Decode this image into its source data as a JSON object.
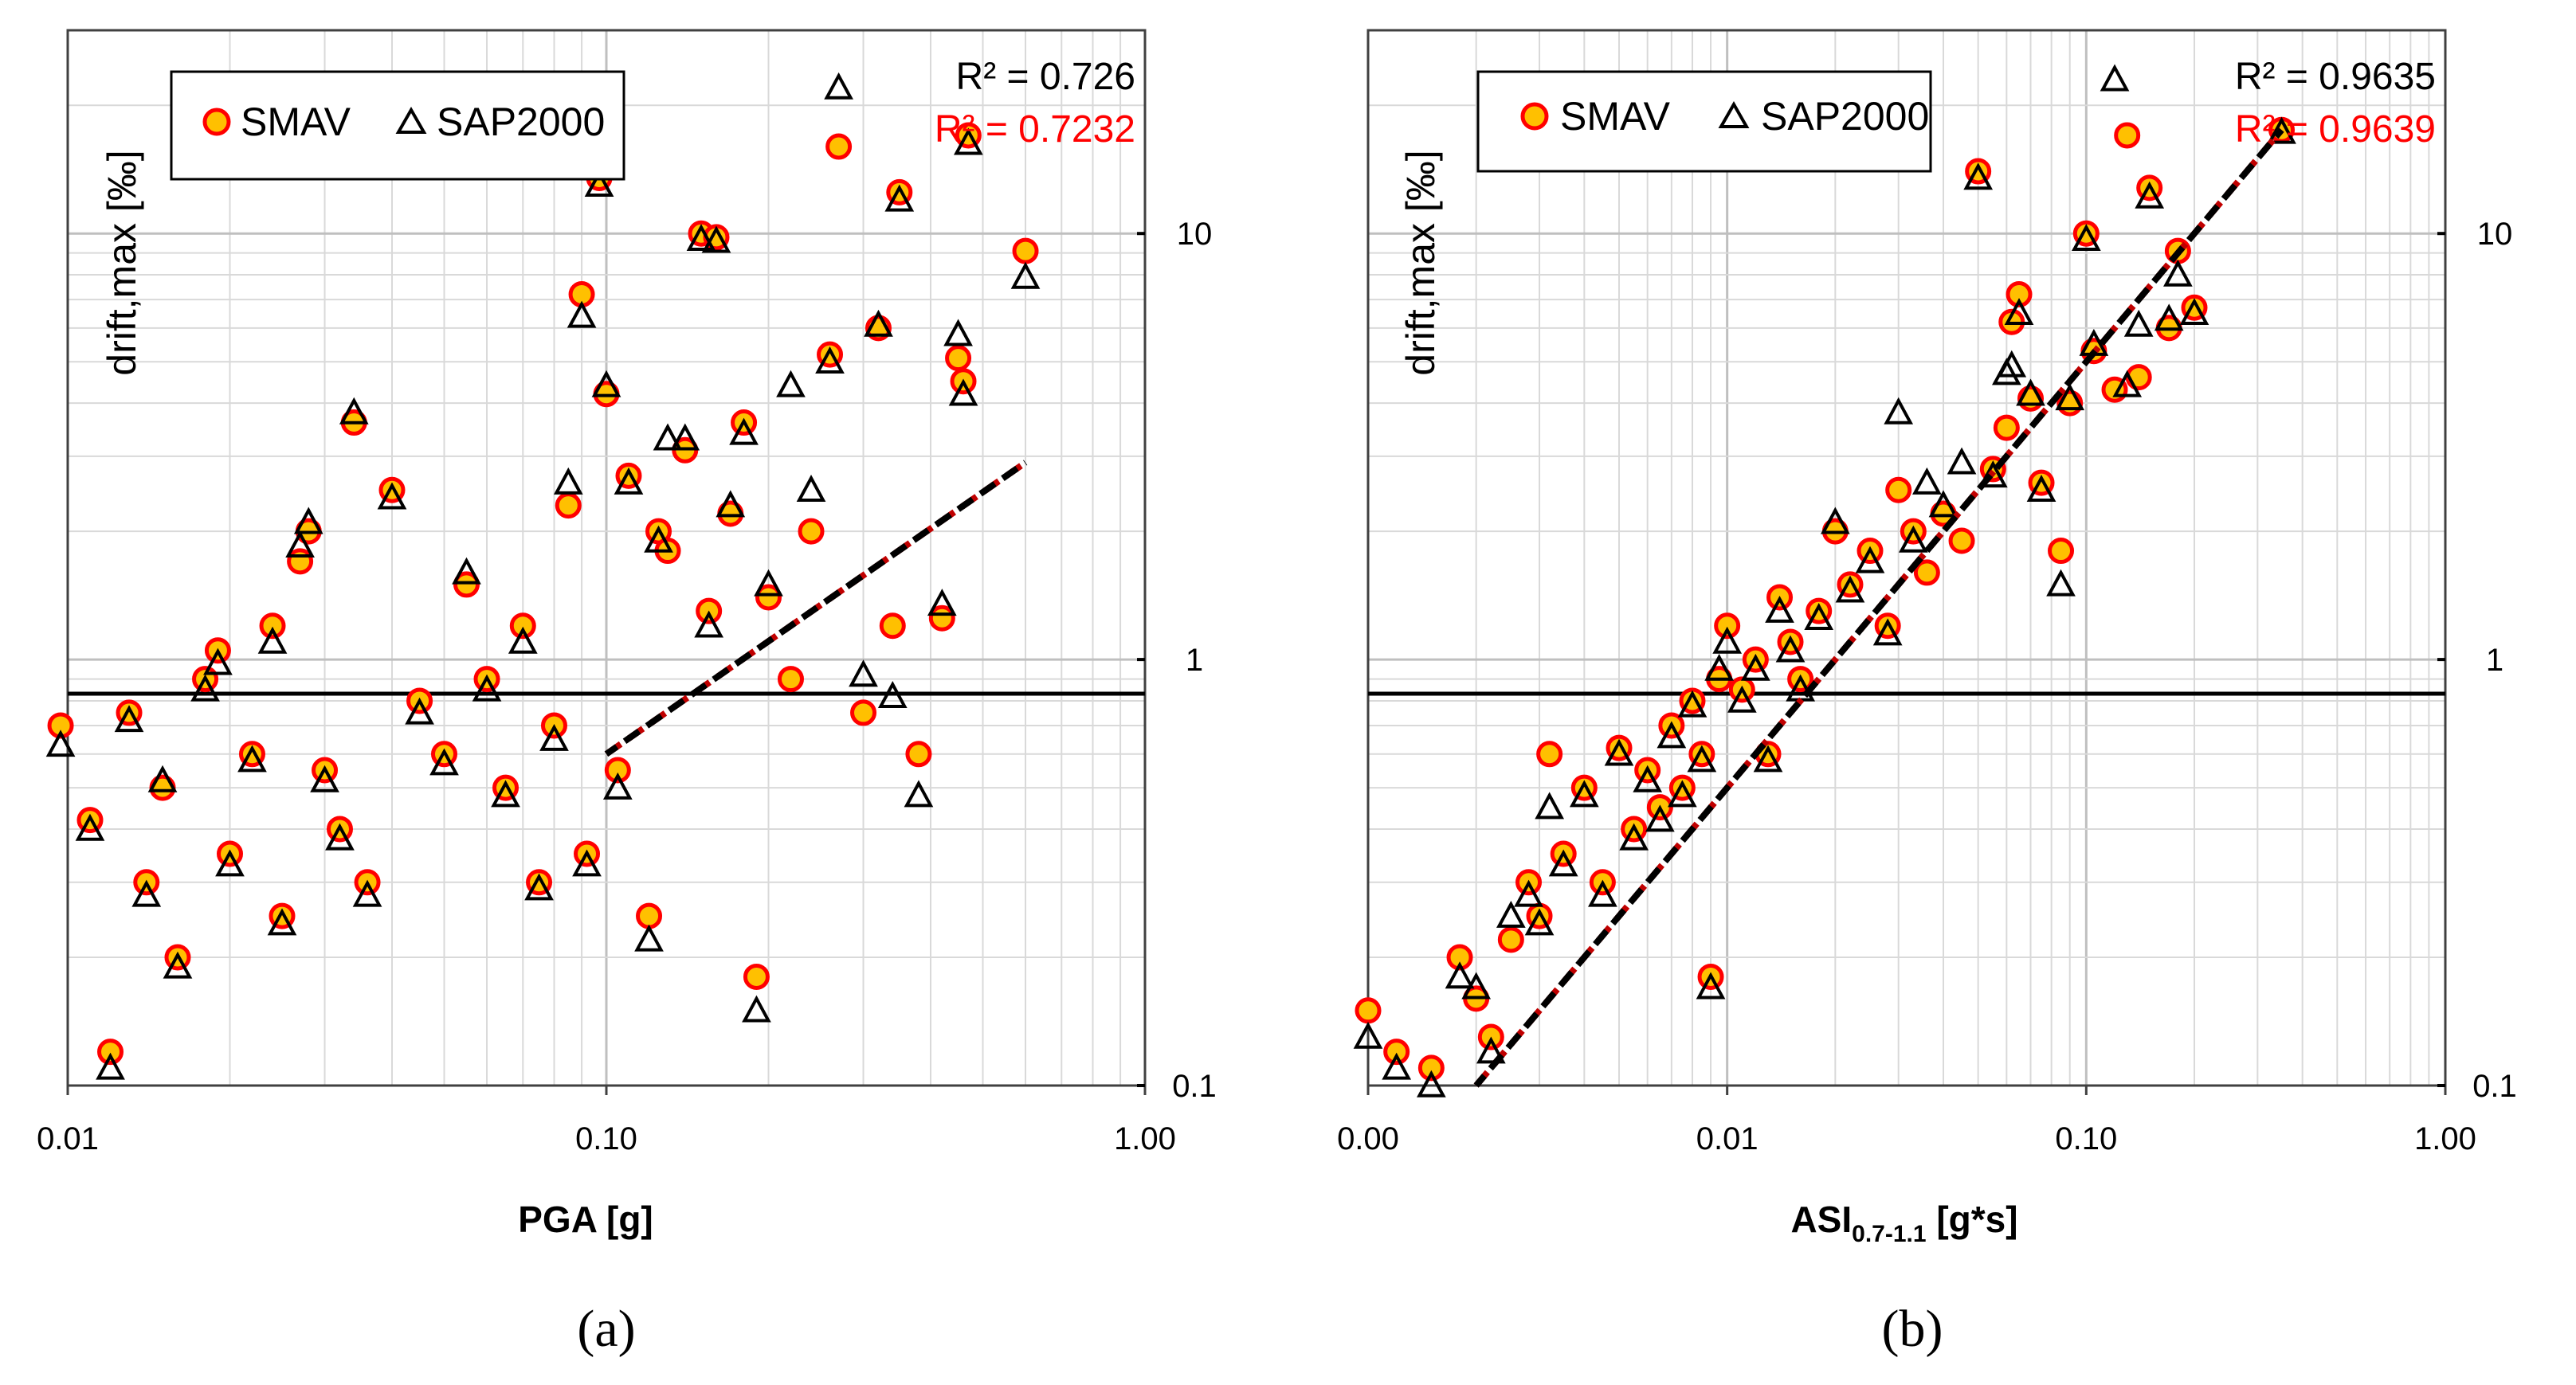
{
  "colors": {
    "smav_fill": "#FFC000",
    "smav_edge": "#FF0000",
    "sap_edge": "#000000",
    "trend_main": "#000000",
    "trend_alt": "#C00000",
    "r2_first": "#000000",
    "r2_second": "#FF0000"
  },
  "chart_data": [
    {
      "type": "scatter",
      "panel_label": "(a)",
      "title": "",
      "xlabel": "PGA [g]",
      "ylabel": "drift,max [‰]",
      "xscale": "log",
      "yscale": "log",
      "xlim": [
        0.01,
        1.0
      ],
      "ylim": [
        0.1,
        30
      ],
      "xticks": [
        0.01,
        0.1,
        1.0
      ],
      "xtick_labels": [
        "0.01",
        "0.10",
        "1.00"
      ],
      "yticks": [
        0.1,
        1,
        10
      ],
      "ytick_labels": [
        "0.1",
        "1",
        "10"
      ],
      "grid": true,
      "legend": {
        "placement": "top-left",
        "entries": [
          "SMAV",
          "SAP2000"
        ]
      },
      "annotations": {
        "r2_first": "R² = 0.726",
        "r2_second": "R² = 0.7232"
      },
      "trendline": {
        "x": [
          0.1,
          0.6
        ],
        "y": [
          0.6,
          2.9
        ]
      },
      "series": [
        {
          "name": "SMAV",
          "marker": "circle",
          "x": [
            0.0097,
            0.011,
            0.012,
            0.013,
            0.014,
            0.015,
            0.016,
            0.018,
            0.019,
            0.02,
            0.022,
            0.024,
            0.025,
            0.027,
            0.028,
            0.03,
            0.032,
            0.034,
            0.036,
            0.04,
            0.045,
            0.05,
            0.055,
            0.06,
            0.065,
            0.07,
            0.075,
            0.08,
            0.085,
            0.09,
            0.092,
            0.097,
            0.1,
            0.105,
            0.11,
            0.12,
            0.125,
            0.13,
            0.14,
            0.15,
            0.155,
            0.16,
            0.17,
            0.18,
            0.19,
            0.2,
            0.22,
            0.24,
            0.26,
            0.27,
            0.3,
            0.32,
            0.34,
            0.35,
            0.38,
            0.42,
            0.45,
            0.46,
            0.47,
            0.6
          ],
          "y": [
            0.7,
            0.42,
            0.12,
            0.75,
            0.3,
            0.5,
            0.2,
            0.9,
            1.05,
            0.35,
            0.6,
            1.2,
            0.25,
            1.7,
            2.0,
            0.55,
            0.4,
            3.6,
            0.3,
            2.5,
            0.8,
            0.6,
            1.5,
            0.9,
            0.5,
            1.2,
            0.3,
            0.7,
            2.3,
            7.2,
            0.35,
            13.5,
            4.2,
            0.55,
            2.7,
            0.25,
            2.0,
            1.8,
            3.1,
            10.0,
            1.3,
            9.8,
            2.2,
            3.6,
            0.18,
            1.4,
            0.9,
            2.0,
            5.2,
            16.0,
            0.75,
            6.0,
            1.2,
            12.5,
            0.6,
            1.25,
            5.1,
            4.5,
            17.0,
            9.1
          ]
        },
        {
          "name": "SAP2000",
          "marker": "triangle",
          "x": [
            0.0097,
            0.011,
            0.012,
            0.013,
            0.014,
            0.015,
            0.016,
            0.018,
            0.019,
            0.02,
            0.022,
            0.024,
            0.025,
            0.027,
            0.028,
            0.03,
            0.032,
            0.034,
            0.036,
            0.04,
            0.045,
            0.05,
            0.055,
            0.06,
            0.065,
            0.07,
            0.075,
            0.08,
            0.085,
            0.09,
            0.092,
            0.097,
            0.1,
            0.105,
            0.11,
            0.12,
            0.125,
            0.13,
            0.14,
            0.15,
            0.155,
            0.16,
            0.17,
            0.18,
            0.19,
            0.2,
            0.22,
            0.24,
            0.26,
            0.27,
            0.3,
            0.32,
            0.34,
            0.35,
            0.38,
            0.42,
            0.45,
            0.46,
            0.47,
            0.6
          ],
          "y": [
            0.63,
            0.4,
            0.11,
            0.72,
            0.28,
            0.52,
            0.19,
            0.85,
            0.98,
            0.33,
            0.58,
            1.1,
            0.24,
            1.85,
            2.1,
            0.52,
            0.38,
            3.8,
            0.28,
            2.4,
            0.75,
            0.57,
            1.6,
            0.85,
            0.48,
            1.1,
            0.29,
            0.65,
            2.6,
            6.4,
            0.33,
            13.0,
            4.4,
            0.5,
            2.6,
            0.22,
            1.9,
            3.3,
            3.3,
            9.7,
            1.2,
            9.6,
            2.3,
            3.4,
            0.15,
            1.5,
            4.4,
            2.5,
            5.0,
            22.0,
            0.92,
            6.1,
            0.82,
            12.0,
            0.48,
            1.35,
            5.8,
            4.2,
            16.3,
            7.9
          ]
        }
      ]
    },
    {
      "type": "scatter",
      "panel_label": "(b)",
      "title": "",
      "xlabel": "ASI",
      "xlabel_sub": "0.7-1.1",
      "xlabel_unit": " [g*s]",
      "ylabel": "drift,max [‰]",
      "xscale": "log",
      "yscale": "log",
      "xlim": [
        0.001,
        1.0
      ],
      "ylim": [
        0.1,
        30
      ],
      "xticks": [
        0.001,
        0.01,
        0.1,
        1.0
      ],
      "xtick_labels": [
        "0.00",
        "0.01",
        "0.10",
        "1.00"
      ],
      "yticks": [
        0.1,
        1,
        10
      ],
      "ytick_labels": [
        "0.1",
        "1",
        "10"
      ],
      "grid": true,
      "legend": {
        "placement": "top-left",
        "entries": [
          "SMAV",
          "SAP2000"
        ]
      },
      "annotations": {
        "r2_first": "R² = 0.9635",
        "r2_second": "R² = 0.9639"
      },
      "trendline": {
        "x": [
          0.002,
          0.35
        ],
        "y": [
          0.1,
          17.5
        ]
      },
      "series": [
        {
          "name": "SMAV",
          "marker": "circle",
          "x": [
            0.001,
            0.0012,
            0.0015,
            0.0018,
            0.002,
            0.0022,
            0.0025,
            0.0028,
            0.003,
            0.0032,
            0.0035,
            0.004,
            0.0045,
            0.005,
            0.0055,
            0.006,
            0.0065,
            0.007,
            0.0075,
            0.008,
            0.0085,
            0.009,
            0.0095,
            0.01,
            0.011,
            0.012,
            0.013,
            0.014,
            0.015,
            0.016,
            0.018,
            0.02,
            0.022,
            0.025,
            0.028,
            0.03,
            0.033,
            0.036,
            0.04,
            0.045,
            0.05,
            0.055,
            0.06,
            0.062,
            0.065,
            0.07,
            0.075,
            0.085,
            0.09,
            0.1,
            0.105,
            0.12,
            0.13,
            0.14,
            0.15,
            0.17,
            0.18,
            0.2,
            0.35
          ],
          "y": [
            0.15,
            0.12,
            0.11,
            0.2,
            0.16,
            0.13,
            0.22,
            0.3,
            0.25,
            0.6,
            0.35,
            0.5,
            0.3,
            0.62,
            0.4,
            0.55,
            0.45,
            0.7,
            0.5,
            0.8,
            0.6,
            0.18,
            0.9,
            1.2,
            0.85,
            1.0,
            0.6,
            1.4,
            1.1,
            0.9,
            1.3,
            2.0,
            1.5,
            1.8,
            1.2,
            2.5,
            2.0,
            1.6,
            2.2,
            1.9,
            14.0,
            2.8,
            3.5,
            6.2,
            7.2,
            4.1,
            2.6,
            1.8,
            4.0,
            10.0,
            5.3,
            4.3,
            17.0,
            4.6,
            12.8,
            6.0,
            9.1,
            6.7,
            17.5
          ],
          "trend_note": ""
        },
        {
          "name": "SAP2000",
          "marker": "triangle",
          "x": [
            0.001,
            0.0012,
            0.0015,
            0.0018,
            0.002,
            0.0022,
            0.0025,
            0.0028,
            0.003,
            0.0032,
            0.0035,
            0.004,
            0.0045,
            0.005,
            0.0055,
            0.006,
            0.0065,
            0.007,
            0.0075,
            0.008,
            0.0085,
            0.009,
            0.0095,
            0.01,
            0.011,
            0.012,
            0.013,
            0.014,
            0.015,
            0.016,
            0.018,
            0.02,
            0.022,
            0.025,
            0.028,
            0.03,
            0.033,
            0.036,
            0.04,
            0.045,
            0.05,
            0.055,
            0.06,
            0.062,
            0.065,
            0.07,
            0.075,
            0.085,
            0.09,
            0.1,
            0.105,
            0.12,
            0.13,
            0.14,
            0.15,
            0.17,
            0.18,
            0.2,
            0.35
          ],
          "y": [
            0.13,
            0.11,
            0.1,
            0.18,
            0.17,
            0.12,
            0.25,
            0.28,
            0.24,
            0.45,
            0.33,
            0.48,
            0.28,
            0.6,
            0.38,
            0.52,
            0.42,
            0.66,
            0.48,
            0.78,
            0.58,
            0.17,
            0.95,
            1.1,
            0.8,
            0.95,
            0.58,
            1.3,
            1.05,
            0.85,
            1.25,
            2.1,
            1.45,
            1.7,
            1.15,
            3.8,
            1.9,
            2.6,
            2.3,
            2.9,
            13.5,
            2.7,
            4.7,
            4.9,
            6.5,
            4.2,
            2.5,
            1.5,
            4.1,
            9.7,
            5.5,
            23.0,
            4.4,
            6.1,
            12.2,
            6.3,
            8.0,
            6.5,
            17.3
          ]
        }
      ]
    }
  ]
}
